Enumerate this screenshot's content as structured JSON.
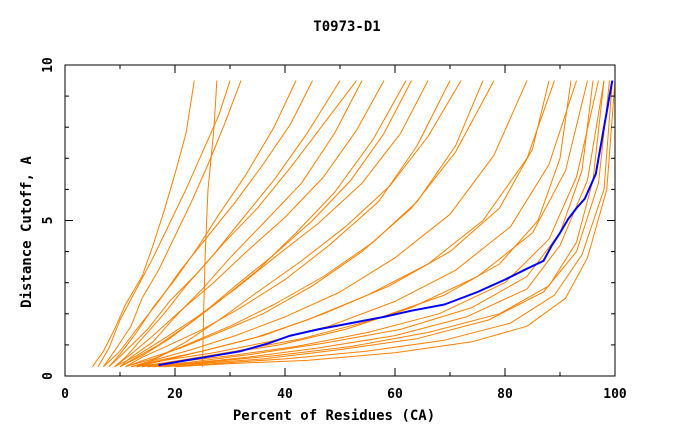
{
  "chart_data": {
    "type": "line",
    "title": "T0973-D1",
    "xlabel": "Percent of Residues (CA)",
    "ylabel": "Distance Cutoff, A",
    "xlim": [
      0,
      100
    ],
    "ylim": [
      0,
      10
    ],
    "xticks": [
      0,
      20,
      40,
      60,
      80,
      100
    ],
    "yticks": [
      0,
      5,
      10
    ],
    "grid": false,
    "colors": {
      "background_models": "#ff8000",
      "highlight": "#0000ff",
      "axis": "#000000"
    },
    "highlight_series": {
      "x": [
        17,
        22,
        27,
        32,
        37,
        41,
        46,
        52,
        58,
        63,
        69,
        75,
        80,
        84,
        87,
        88.5,
        90,
        91.5,
        93,
        94.5,
        95.5,
        96.5,
        97,
        97.5,
        98,
        98.5,
        99,
        99.5
      ],
      "y": [
        0.35,
        0.5,
        0.65,
        0.8,
        1.05,
        1.3,
        1.5,
        1.7,
        1.9,
        2.1,
        2.3,
        2.7,
        3.1,
        3.45,
        3.7,
        4.2,
        4.6,
        5.05,
        5.4,
        5.7,
        6.1,
        6.5,
        7.0,
        7.5,
        8.0,
        8.5,
        9.0,
        9.5
      ]
    },
    "background_series": [
      {
        "x": [
          25,
          25.2,
          25.5,
          26,
          27,
          27.3,
          27.6
        ],
        "y": [
          0.3,
          2,
          4,
          6,
          7.8,
          8.6,
          9.5
        ]
      },
      {
        "x": [
          5,
          7,
          9,
          11,
          14,
          16,
          18,
          20,
          22,
          23.5
        ],
        "y": [
          0.3,
          0.8,
          1.5,
          2.3,
          3.2,
          4.2,
          5.3,
          6.5,
          7.8,
          9.5
        ]
      },
      {
        "x": [
          7,
          9,
          12,
          14,
          17,
          20,
          23,
          26,
          29,
          32
        ],
        "y": [
          0.3,
          0.8,
          1.6,
          2.5,
          3.4,
          4.5,
          5.6,
          6.8,
          8.1,
          9.5
        ]
      },
      {
        "x": [
          8,
          10,
          13,
          16,
          20,
          24,
          28,
          33,
          38,
          42
        ],
        "y": [
          0.3,
          0.7,
          1.4,
          2.2,
          3.1,
          4.1,
          5.2,
          6.5,
          8,
          9.5
        ]
      },
      {
        "x": [
          9,
          11,
          14,
          18,
          22,
          27,
          32,
          38,
          44,
          50
        ],
        "y": [
          0.3,
          0.6,
          1.2,
          2,
          2.9,
          3.9,
          5,
          6.3,
          7.8,
          9.5
        ]
      },
      {
        "x": [
          10,
          12,
          16,
          20,
          25,
          30,
          36,
          43,
          49,
          54
        ],
        "y": [
          0.3,
          0.6,
          1.1,
          1.9,
          2.8,
          3.8,
          4.9,
          6.2,
          7.8,
          9.5
        ]
      },
      {
        "x": [
          10,
          13,
          17,
          22,
          28,
          35,
          42,
          49,
          56,
          62
        ],
        "y": [
          0.3,
          0.6,
          1,
          1.6,
          2.4,
          3.4,
          4.6,
          5.9,
          7.6,
          9.5
        ]
      },
      {
        "x": [
          11,
          14,
          19,
          25,
          32,
          40,
          48,
          57,
          64,
          70
        ],
        "y": [
          0.3,
          0.6,
          1,
          1.5,
          2.2,
          3.1,
          4.2,
          5.6,
          7.4,
          9.5
        ]
      },
      {
        "x": [
          11,
          15,
          21,
          28,
          36,
          45,
          54,
          63,
          71,
          78
        ],
        "y": [
          0.3,
          0.55,
          0.9,
          1.4,
          2,
          2.9,
          4,
          5.4,
          7.2,
          9.5
        ]
      },
      {
        "x": [
          12,
          16,
          23,
          31,
          40,
          50,
          60,
          70,
          78,
          84
        ],
        "y": [
          0.3,
          0.5,
          0.85,
          1.3,
          1.9,
          2.7,
          3.8,
          5.2,
          7.1,
          9.5
        ]
      },
      {
        "x": [
          12,
          17,
          25,
          34,
          44,
          55,
          66,
          76,
          84,
          89
        ],
        "y": [
          0.3,
          0.5,
          0.8,
          1.2,
          1.8,
          2.6,
          3.6,
          5,
          7,
          9.5
        ]
      },
      {
        "x": [
          13,
          18,
          27,
          37,
          48,
          60,
          71,
          81,
          88,
          93
        ],
        "y": [
          0.3,
          0.5,
          0.75,
          1.1,
          1.6,
          2.4,
          3.4,
          4.8,
          6.8,
          9.5
        ]
      },
      {
        "x": [
          13,
          19,
          28,
          39,
          51,
          63,
          75,
          85,
          91,
          95
        ],
        "y": [
          0.3,
          0.45,
          0.7,
          1,
          1.5,
          2.2,
          3.2,
          4.6,
          6.6,
          9.5
        ]
      },
      {
        "x": [
          14,
          20,
          30,
          42,
          55,
          68,
          80,
          88,
          93,
          97
        ],
        "y": [
          0.3,
          0.45,
          0.65,
          0.95,
          1.4,
          2,
          3,
          4.4,
          6.4,
          9.5
        ]
      },
      {
        "x": [
          15,
          22,
          33,
          46,
          60,
          73,
          84,
          90,
          95,
          98
        ],
        "y": [
          0.3,
          0.4,
          0.6,
          0.9,
          1.3,
          1.9,
          2.8,
          4.2,
          6.3,
          9.5
        ]
      },
      {
        "x": [
          16,
          24,
          36,
          50,
          64,
          77,
          87,
          93,
          97,
          99
        ],
        "y": [
          0.3,
          0.4,
          0.55,
          0.85,
          1.2,
          1.8,
          2.7,
          4,
          6.2,
          9.5
        ]
      },
      {
        "x": [
          18,
          27,
          40,
          55,
          69,
          81,
          89,
          94,
          98,
          99.5
        ],
        "y": [
          0.3,
          0.4,
          0.55,
          0.8,
          1.15,
          1.7,
          2.6,
          3.9,
          6,
          9.5
        ]
      },
      {
        "x": [
          20,
          30,
          44,
          60,
          74,
          84,
          91,
          95,
          98.5,
          100
        ],
        "y": [
          0.3,
          0.4,
          0.5,
          0.75,
          1.1,
          1.6,
          2.5,
          3.8,
          6,
          9.5
        ]
      },
      {
        "x": [
          8,
          11,
          15,
          19,
          24,
          29,
          35,
          41,
          47,
          53
        ],
        "y": [
          0.3,
          0.8,
          1.5,
          2.4,
          3.3,
          4.3,
          5.4,
          6.7,
          8.1,
          9.5
        ]
      },
      {
        "x": [
          9,
          12,
          16,
          21,
          27,
          33,
          40,
          47,
          53,
          58
        ],
        "y": [
          0.3,
          0.7,
          1.3,
          2.1,
          3,
          4,
          5.1,
          6.4,
          7.9,
          9.5
        ]
      },
      {
        "x": [
          6,
          8,
          10,
          13,
          16,
          19,
          22,
          25,
          28,
          30
        ],
        "y": [
          0.3,
          0.9,
          1.8,
          2.8,
          3.8,
          4.9,
          6,
          7.2,
          8.4,
          9.5
        ]
      },
      {
        "x": [
          7,
          10,
          13,
          17,
          21,
          26,
          31,
          36,
          41,
          45
        ],
        "y": [
          0.3,
          0.8,
          1.5,
          2.4,
          3.4,
          4.5,
          5.6,
          6.8,
          8.1,
          9.5
        ]
      },
      {
        "x": [
          11,
          16,
          22,
          30,
          38,
          47,
          56,
          64,
          71,
          76
        ],
        "y": [
          0.3,
          0.55,
          1,
          1.6,
          2.3,
          3.2,
          4.3,
          5.6,
          7.4,
          9.5
        ]
      },
      {
        "x": [
          14,
          21,
          31,
          43,
          56,
          69,
          79,
          86,
          90,
          92
        ],
        "y": [
          0.3,
          0.5,
          0.8,
          1.2,
          1.8,
          2.6,
          3.6,
          5,
          7,
          9.5
        ]
      },
      {
        "x": [
          12,
          18,
          26,
          36,
          47,
          59,
          70,
          79,
          85,
          88
        ],
        "y": [
          0.3,
          0.5,
          0.85,
          1.3,
          2,
          2.9,
          4,
          5.4,
          7.3,
          9.5
        ]
      },
      {
        "x": [
          10,
          14,
          19,
          25,
          31,
          38,
          45,
          52,
          58,
          63
        ],
        "y": [
          0.3,
          0.65,
          1.2,
          2,
          2.9,
          3.9,
          5,
          6.3,
          7.8,
          9.5
        ]
      },
      {
        "x": [
          15,
          23,
          34,
          47,
          61,
          74,
          84,
          90,
          94,
          96
        ],
        "y": [
          0.3,
          0.45,
          0.7,
          1.05,
          1.5,
          2.2,
          3.2,
          4.6,
          6.6,
          9.5
        ]
      },
      {
        "x": [
          17,
          26,
          38,
          52,
          66,
          79,
          88,
          93,
          96,
          98
        ],
        "y": [
          0.3,
          0.45,
          0.65,
          0.95,
          1.4,
          2,
          2.9,
          4.3,
          6.3,
          9.5
        ]
      },
      {
        "x": [
          13,
          17,
          22,
          28,
          35,
          43,
          51,
          59,
          66,
          72
        ],
        "y": [
          0.3,
          0.6,
          1.1,
          1.8,
          2.7,
          3.7,
          4.8,
          6.1,
          7.7,
          9.5
        ]
      },
      {
        "x": [
          9,
          13,
          18,
          24,
          31,
          38,
          46,
          54,
          61,
          66
        ],
        "y": [
          0.3,
          0.65,
          1.2,
          1.9,
          2.8,
          3.8,
          4.9,
          6.2,
          7.8,
          9.5
        ]
      }
    ]
  }
}
